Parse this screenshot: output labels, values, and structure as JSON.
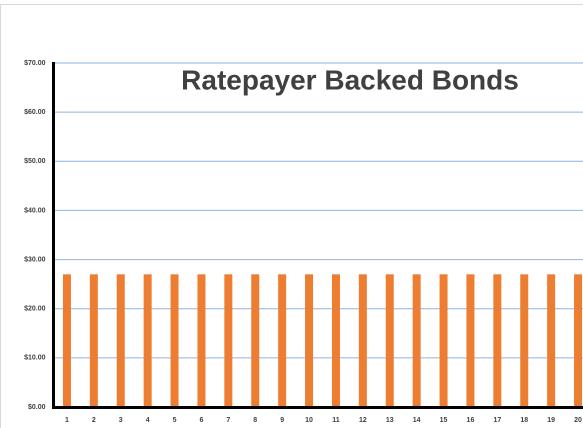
{
  "chart_data": {
    "type": "bar",
    "title": "Ratepayer Backed Bonds",
    "categories": [
      "1",
      "2",
      "3",
      "4",
      "5",
      "6",
      "7",
      "8",
      "9",
      "10",
      "11",
      "12",
      "13",
      "14",
      "15",
      "16",
      "17",
      "18",
      "19",
      "20"
    ],
    "values": [
      27,
      27,
      27,
      27,
      27,
      27,
      27,
      27,
      27,
      27,
      27,
      27,
      27,
      27,
      27,
      27,
      27,
      27,
      27,
      27
    ],
    "color": "#ed7d31",
    "ylim": [
      0,
      70
    ],
    "yticks": [
      {
        "value": 0,
        "label": "$0.00"
      },
      {
        "value": 10,
        "label": "$10.00"
      },
      {
        "value": 20,
        "label": "$20.00"
      },
      {
        "value": 30,
        "label": "$30.00"
      },
      {
        "value": 40,
        "label": "$40.00"
      },
      {
        "value": 50,
        "label": "$50.00"
      },
      {
        "value": 60,
        "label": "$60.00"
      },
      {
        "value": 70,
        "label": "$70.00"
      }
    ],
    "grid": true
  }
}
